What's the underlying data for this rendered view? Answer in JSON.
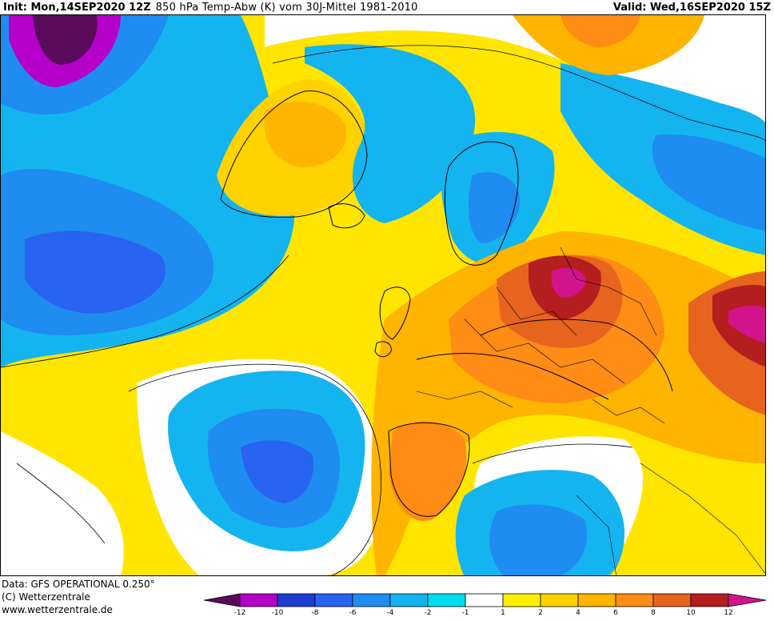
{
  "header": {
    "init": "Init: Mon,14SEP2020 12Z",
    "title": "850 hPa Temp-Abw (K) vom 30J-Mittel 1981-2010",
    "valid": "Valid: Wed,16SEP2020 15Z"
  },
  "footer": {
    "data_source": "Data: GFS OPERATIONAL 0.250°",
    "copyright": "(C) Wetterzentrale",
    "website": "www.wetterzentrale.de"
  },
  "legend": {
    "tick_labels": [
      "-12",
      "-10",
      "-8",
      "-6",
      "-4",
      "-2",
      "-1",
      "1",
      "2",
      "4",
      "6",
      "8",
      "10",
      "12"
    ],
    "colors": {
      "lt_-12": "#5a0a5a",
      "-12_-10": "#b400c8",
      "-10_-8": "#1e3cd2",
      "-8_-6": "#2864f0",
      "-6_-4": "#1e8cf0",
      "-4_-2": "#14b4f0",
      "-2_-1": "#00dcf0",
      "-1_1": "#ffffff",
      "1_2": "#fff000",
      "2_4": "#ffd200",
      "4_6": "#ffb400",
      "6_8": "#ff8c14",
      "8_10": "#e6641e",
      "10_12": "#b41e1e",
      "gt_12": "#d2148c"
    }
  },
  "map": {
    "product": "850 hPa temperature anomaly",
    "region": "North Atlantic / Europe"
  }
}
